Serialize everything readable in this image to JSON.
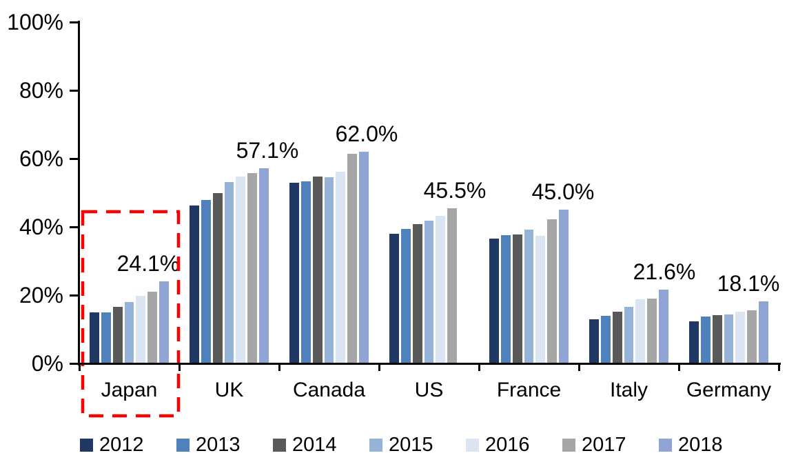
{
  "chart_data": {
    "type": "bar",
    "title": "",
    "categories": [
      "Japan",
      "UK",
      "Canada",
      "US",
      "France",
      "Italy",
      "Germany"
    ],
    "series": [
      {
        "name": "2012",
        "color": "#1F3864",
        "values": [
          14.9,
          46.3,
          53.0,
          38.0,
          36.5,
          13.0,
          12.4
        ]
      },
      {
        "name": "2013",
        "color": "#4F81BD",
        "values": [
          15.0,
          47.8,
          53.4,
          39.5,
          37.6,
          13.9,
          13.7
        ]
      },
      {
        "name": "2014",
        "color": "#595959",
        "values": [
          16.6,
          50.0,
          54.8,
          40.8,
          37.8,
          15.1,
          14.1
        ]
      },
      {
        "name": "2015",
        "color": "#95B3D7",
        "values": [
          18.0,
          53.2,
          54.6,
          41.8,
          39.3,
          16.6,
          14.4
        ]
      },
      {
        "name": "2016",
        "color": "#DBE5F1",
        "values": [
          19.9,
          54.8,
          56.1,
          43.3,
          37.3,
          18.7,
          15.1
        ]
      },
      {
        "name": "2017",
        "color": "#A6A6A6",
        "values": [
          21.0,
          55.8,
          61.5,
          45.5,
          42.3,
          19.0,
          15.6
        ]
      },
      {
        "name": "2018",
        "color": "#90A5D3",
        "values": [
          24.1,
          57.1,
          62.0,
          null,
          45.0,
          21.6,
          18.1
        ]
      }
    ],
    "data_labels": [
      "24.1%",
      "57.1%",
      "62.0%",
      "45.5%",
      "45.0%",
      "21.6%",
      "18.1%"
    ],
    "y_axis": {
      "min": 0,
      "max": 100,
      "ticks": [
        "0%",
        "20%",
        "40%",
        "60%",
        "80%",
        "100%"
      ]
    },
    "legend_position": "bottom",
    "grid": false,
    "highlight": {
      "category": "Japan",
      "style": "red-dashed-box",
      "color": "#FF0000"
    }
  }
}
